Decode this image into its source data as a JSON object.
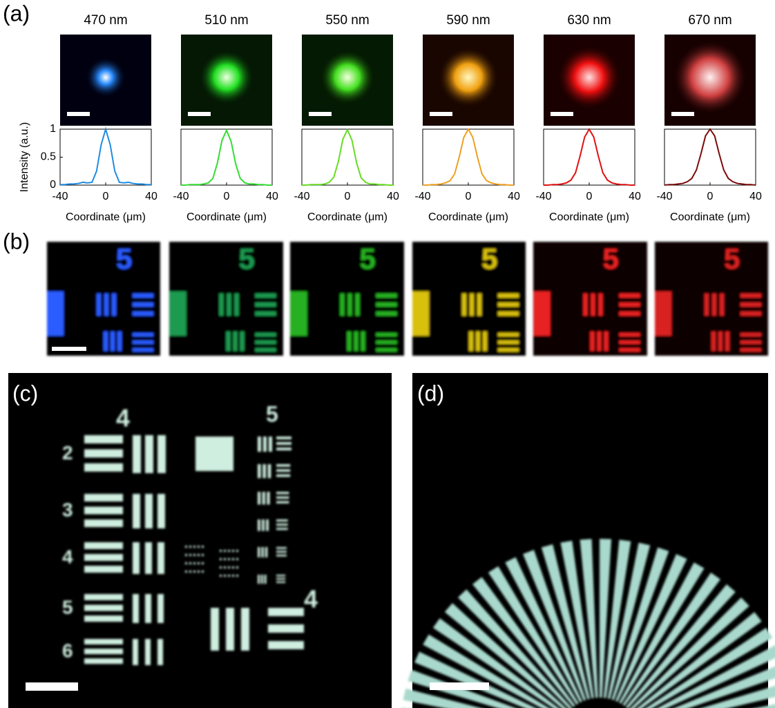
{
  "panels": [
    "(a)",
    "(b)",
    "(c)",
    "(d)"
  ],
  "chart_data": [
    {
      "type": "line",
      "title": "470 nm",
      "ylabel": "Intensity (a.u.)",
      "xlabel": "Coordinate (μm)",
      "color": "#1f8be0",
      "x": [
        -40,
        -36,
        -32,
        -28,
        -24,
        -20,
        -16,
        -12,
        -8,
        -4,
        0,
        4,
        8,
        12,
        16,
        20,
        24,
        28,
        32,
        36,
        40
      ],
      "values": [
        0.01,
        0.01,
        0.02,
        0.02,
        0.03,
        0.05,
        0.04,
        0.05,
        0.25,
        0.72,
        1,
        0.72,
        0.25,
        0.05,
        0.04,
        0.05,
        0.03,
        0.02,
        0.02,
        0.01,
        0.01
      ],
      "xlim": [
        -40,
        40
      ],
      "xticks": [
        -40,
        0,
        40
      ],
      "ylim": [
        0,
        1
      ],
      "yticks": [
        0,
        0.5,
        1
      ]
    },
    {
      "type": "line",
      "title": "510 nm",
      "xlabel": "Coordinate (μm)",
      "color": "#33dd33",
      "x": [
        -40,
        -36,
        -32,
        -28,
        -24,
        -20,
        -16,
        -12,
        -8,
        -4,
        0,
        4,
        8,
        12,
        16,
        20,
        24,
        28,
        32,
        36,
        40
      ],
      "values": [
        0,
        0,
        0.01,
        0.01,
        0.01,
        0.02,
        0.04,
        0.12,
        0.4,
        0.8,
        0.98,
        0.78,
        0.38,
        0.12,
        0.04,
        0.02,
        0.02,
        0.01,
        0.01,
        0,
        0
      ],
      "xlim": [
        -40,
        40
      ],
      "xticks": [
        -40,
        0,
        40
      ],
      "ylim": [
        0,
        1
      ]
    },
    {
      "type": "line",
      "title": "550 nm",
      "xlabel": "Coordinate (μm)",
      "color": "#66dd22",
      "x": [
        -40,
        -36,
        -32,
        -28,
        -24,
        -20,
        -16,
        -12,
        -8,
        -4,
        0,
        4,
        8,
        12,
        16,
        20,
        24,
        28,
        32,
        36,
        40
      ],
      "values": [
        0,
        0,
        0.01,
        0.01,
        0.01,
        0.02,
        0.05,
        0.14,
        0.42,
        0.82,
        0.99,
        0.8,
        0.4,
        0.13,
        0.05,
        0.02,
        0.02,
        0.01,
        0.01,
        0,
        0
      ],
      "xlim": [
        -40,
        40
      ],
      "xticks": [
        -40,
        0,
        40
      ],
      "ylim": [
        0,
        1
      ]
    },
    {
      "type": "line",
      "title": "590 nm",
      "xlabel": "Coordinate (μm)",
      "color": "#f0a020",
      "x": [
        -40,
        -36,
        -32,
        -28,
        -24,
        -20,
        -16,
        -12,
        -8,
        -4,
        0,
        4,
        8,
        12,
        16,
        20,
        24,
        28,
        32,
        36,
        40
      ],
      "values": [
        0,
        0,
        0.01,
        0.01,
        0.02,
        0.04,
        0.08,
        0.2,
        0.5,
        0.85,
        1,
        0.85,
        0.5,
        0.2,
        0.08,
        0.04,
        0.02,
        0.01,
        0.01,
        0,
        0
      ],
      "xlim": [
        -40,
        40
      ],
      "xticks": [
        -40,
        0,
        40
      ],
      "ylim": [
        0,
        1
      ]
    },
    {
      "type": "line",
      "title": "630 nm",
      "xlabel": "Coordinate (μm)",
      "color": "#e01010",
      "x": [
        -40,
        -36,
        -32,
        -28,
        -24,
        -20,
        -16,
        -12,
        -8,
        -4,
        0,
        4,
        8,
        12,
        16,
        20,
        24,
        28,
        32,
        36,
        40
      ],
      "values": [
        0,
        0,
        0.01,
        0.01,
        0.02,
        0.04,
        0.09,
        0.22,
        0.52,
        0.86,
        1,
        0.86,
        0.52,
        0.22,
        0.09,
        0.04,
        0.02,
        0.01,
        0.01,
        0,
        0
      ],
      "xlim": [
        -40,
        40
      ],
      "xticks": [
        -40,
        0,
        40
      ],
      "ylim": [
        0,
        1
      ]
    },
    {
      "type": "line",
      "title": "670 nm",
      "xlabel": "Coordinate (μm)",
      "color": "#7a0a0a",
      "x": [
        -40,
        -36,
        -32,
        -28,
        -24,
        -20,
        -16,
        -12,
        -8,
        -4,
        0,
        4,
        8,
        12,
        16,
        20,
        24,
        28,
        32,
        36,
        40
      ],
      "values": [
        0,
        0.01,
        0.01,
        0.02,
        0.03,
        0.06,
        0.12,
        0.27,
        0.56,
        0.88,
        1,
        0.88,
        0.56,
        0.27,
        0.12,
        0.06,
        0.03,
        0.02,
        0.01,
        0.01,
        0
      ],
      "xlim": [
        -40,
        40
      ],
      "xticks": [
        -40,
        0,
        40
      ],
      "ylim": [
        0,
        1
      ]
    }
  ]
}
